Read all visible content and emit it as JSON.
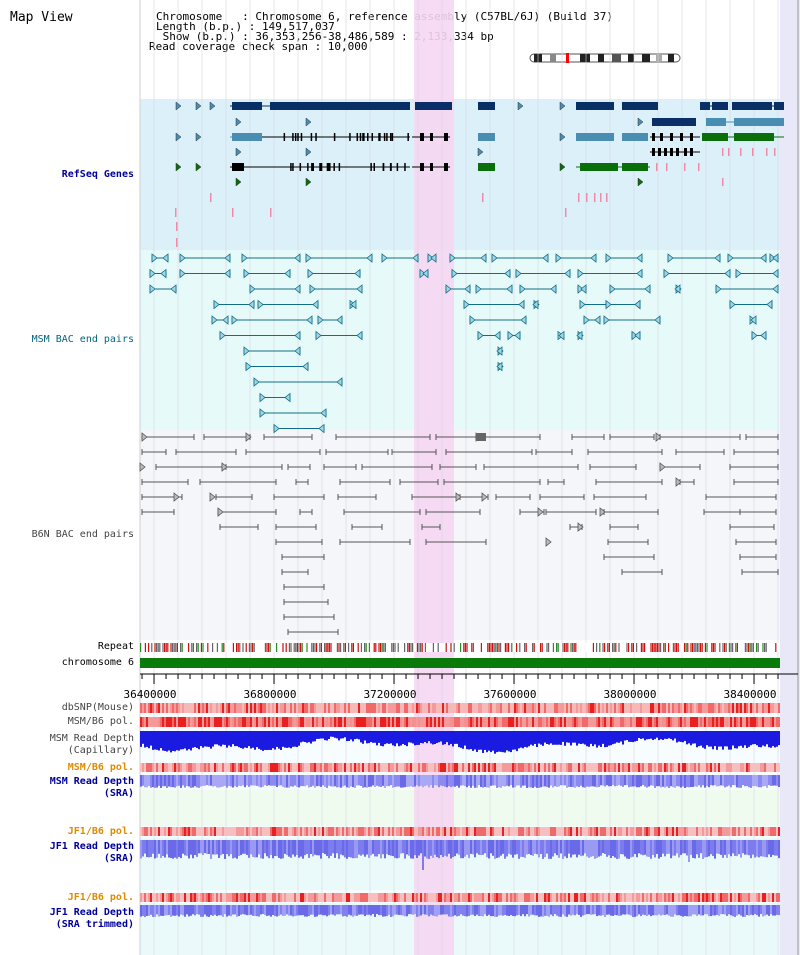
{
  "page": {
    "title": "Map View"
  },
  "header": {
    "chromosome_line": "Chromosome   : Chromosome 6, reference assembly (C57BL/6J) (Build 37)",
    "length_line": "Length (b.p.) : 149,517,037",
    "show_line": " Show (b.p.) : 36,353,256-38,486,589 : 2,133,334 bp",
    "coverage_line": "Read coverage check span : 10,000"
  },
  "colors": {
    "refseq_bg": "#dcf0fa",
    "msm_bac_bg": "#e6fafa",
    "b6n_bac_bg": "#f4f6f9",
    "highlight": "#f6d6f2",
    "refseq_navy": "#0a2f66",
    "refseq_steel": "#4a8db3",
    "refseq_green": "#0a6e0a",
    "msm_pair": "#116d87",
    "b6n_pair": "#555555",
    "chromosome": "#0a7a0a"
  },
  "tracks": {
    "refseq": "RefSeq Genes",
    "msm_bac": "MSM BAC end pairs",
    "b6n_bac": "B6N BAC end pairs",
    "repeat": "Repeat",
    "chromosome": "chromosome 6",
    "dbsnp": "dbSNP(Mouse)",
    "msm_b6_pol": "MSM/B6 pol.",
    "msm_depth_cap_1": "MSM Read Depth",
    "msm_depth_cap_2": "(Capillary)",
    "msm_b6_pol_2": "MSM/B6 pol.",
    "msm_depth_sra_1": "MSM Read Depth",
    "msm_depth_sra_2": "(SRA)",
    "jf1_pol_1": "JF1/B6 pol.",
    "jf1_depth_sra_1": "JF1 Read Depth",
    "jf1_depth_sra_2": "(SRA)",
    "jf1_pol_2": "JF1/B6 pol.",
    "jf1_depth_trim_1": "JF1 Read Depth",
    "jf1_depth_trim_2": "(SRA trimmed)"
  },
  "axis": {
    "start": 36353256,
    "end": 38486589,
    "ticks": [
      "36400000",
      "36800000",
      "37200000",
      "37600000",
      "38000000",
      "38400000"
    ],
    "tick_values": [
      36400000,
      36800000,
      37200000,
      37600000,
      38000000,
      38400000
    ]
  },
  "highlight_range": [
    37267000,
    37400000
  ]
}
